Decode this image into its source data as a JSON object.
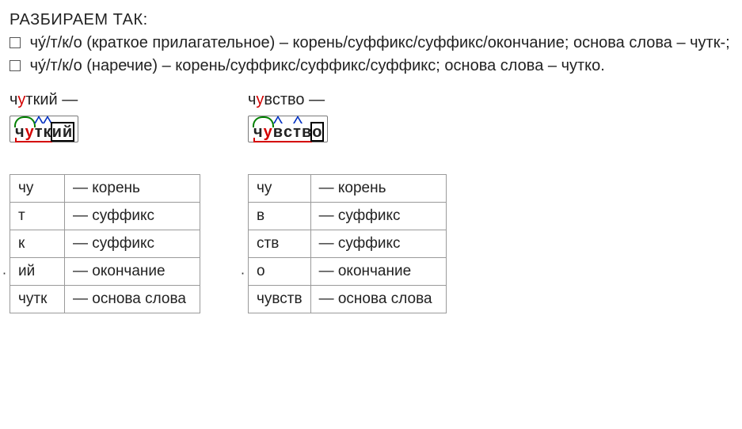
{
  "intro": {
    "title": "РАЗБИРАЕМ ТАК:",
    "line1_word": "чу́/т/к/о",
    "line1_pos": "(краткое прилагательное)",
    "line1_parts": "корень/суффикс/суффикс/окончание",
    "line1_basis_label": "основа слова",
    "line1_basis": "чутк-",
    "line2_word": "чу́/т/к/о",
    "line2_pos": "(наречие)",
    "line2_parts": "корень/суффикс/суффикс/суффикс",
    "line2_basis_label": "основа слова",
    "line2_basis": "чутко"
  },
  "left": {
    "header_pre": "ч",
    "header_hl": "у",
    "header_post": "ткий —",
    "box": {
      "root_pre": "ч",
      "root_hl": "у",
      "suf1": "т",
      "suf2": "к",
      "end": "ий"
    },
    "table": [
      {
        "m": "чу",
        "d": "— корень"
      },
      {
        "m": "т",
        "d": "— суффикс"
      },
      {
        "m": "к",
        "d": "— суффикс"
      },
      {
        "m": "ий",
        "d": "— окончание"
      },
      {
        "m": "чутк",
        "d": "— основа слова"
      }
    ]
  },
  "right": {
    "header_pre": "ч",
    "header_hl": "у",
    "header_post": "вство —",
    "box": {
      "root_pre": "ч",
      "root_hl": "у",
      "suf1": "в",
      "suf2": "ств",
      "end": "о"
    },
    "table": [
      {
        "m": "чу",
        "d": "— корень"
      },
      {
        "m": "в",
        "d": "— суффикс"
      },
      {
        "m": "ств",
        "d": "— суффикс"
      },
      {
        "m": "о",
        "d": "— окончание"
      },
      {
        "m": "чувств",
        "d": "— основа слова"
      }
    ]
  },
  "style": {
    "hl_color": "#d40000",
    "root_color": "#008000",
    "suffix_color": "#0030c0",
    "ending_color": "#000000",
    "border_color": "#9a9a9a",
    "font_size_body": 20,
    "font_size_table": 19
  }
}
